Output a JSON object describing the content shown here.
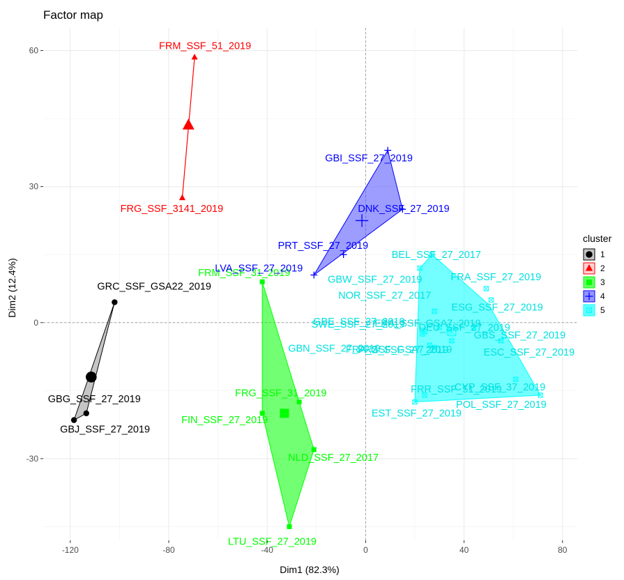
{
  "chart_data": {
    "type": "scatter",
    "title": "Factor map",
    "xlabel": "Dim1 (82.3%)",
    "ylabel": "Dim2 (12.4%)",
    "xlim": [
      -131,
      86
    ],
    "ylim": [
      -48,
      65
    ],
    "xticks": [
      -120,
      -80,
      -40,
      0,
      40,
      80
    ],
    "yticks": [
      -30,
      0,
      30,
      60
    ],
    "grid": true,
    "legend_title": "cluster",
    "legend_position": "right",
    "clusters": [
      {
        "name": "1",
        "color": "#000000",
        "fill": "#bfbfbf",
        "marker": "circle",
        "centroid": [
          -111.5,
          -12
        ],
        "hull": [
          [
            -102,
            4.5
          ],
          [
            -118.5,
            -21.5
          ],
          [
            -113.5,
            -20
          ]
        ],
        "points": [
          {
            "label": "GRC_SSF_GSA22_2019",
            "x": -102,
            "y": 4.5
          },
          {
            "label": "GBG_SSF_27_2019",
            "x": -113.5,
            "y": -20
          },
          {
            "label": "GBJ_SSF_27_2019",
            "x": -118.5,
            "y": -21.5
          }
        ]
      },
      {
        "name": "2",
        "color": "#ff0000",
        "fill": "#ffb3b3",
        "marker": "triangle",
        "centroid": [
          -72,
          43.5
        ],
        "hull": [
          [
            -69.5,
            58.5
          ],
          [
            -74.5,
            27.5
          ]
        ],
        "points": [
          {
            "label": "FRM_SSF_51_2019",
            "x": -69.5,
            "y": 58.5
          },
          {
            "label": "FRG_SSF_3141_2019",
            "x": -74.5,
            "y": 27.5
          }
        ]
      },
      {
        "name": "3",
        "color": "#00ff00",
        "fill": "#00ff00",
        "marker": "square",
        "centroid": [
          -33,
          -20
        ],
        "hull": [
          [
            -42,
            9
          ],
          [
            -27,
            -17.5
          ],
          [
            -21,
            -28
          ],
          [
            -31,
            -45
          ],
          [
            -42,
            -20
          ]
        ],
        "points": [
          {
            "label": "FRM_SSF_31_2019",
            "x": -42,
            "y": 9
          },
          {
            "label": "FRG_SSF_31_2019",
            "x": -27,
            "y": -17.5
          },
          {
            "label": "FIN_SSF_27_2019",
            "x": -42,
            "y": -20
          },
          {
            "label": "NLD_SSF_27_2017",
            "x": -21,
            "y": -28
          },
          {
            "label": "LTU_SSF_27_2019",
            "x": -31,
            "y": -45
          }
        ]
      },
      {
        "name": "4",
        "color": "#0000ff",
        "fill": "#4d4dff",
        "marker": "plus",
        "centroid": [
          -1.5,
          22.5
        ],
        "hull": [
          [
            9,
            38
          ],
          [
            15,
            25
          ],
          [
            -21,
            10.5
          ]
        ],
        "points": [
          {
            "label": "GBI_SSF_27_2019",
            "x": 9,
            "y": 38
          },
          {
            "label": "DNK_SSF_27_2019",
            "x": 15,
            "y": 25
          },
          {
            "label": "PRT_SSF_27_2019",
            "x": -9,
            "y": 15
          },
          {
            "label": "LVA_SSF_27_2019",
            "x": -21,
            "y": 10.5
          }
        ]
      },
      {
        "name": "5",
        "color": "#00ffff",
        "fill": "#00ffff",
        "marker": "square-x",
        "centroid": [
          35,
          -2
        ],
        "hull": [
          [
            27,
            15
          ],
          [
            50,
            4
          ],
          [
            71,
            -16
          ],
          [
            20,
            -17.5
          ],
          [
            22,
            12
          ]
        ],
        "points": [
          {
            "label": "BEL_SSF_27_2017",
            "x": 27,
            "y": 15
          },
          {
            "label": "GBW_SSF_27_2019",
            "x": 22,
            "y": 12
          },
          {
            "label": "FRA_SSF_27_2019",
            "x": 49,
            "y": 7.5
          },
          {
            "label": "NOR_SSF_27_2017",
            "x": 28,
            "y": 2.5
          },
          {
            "label": "ESG_SSF_27_2019",
            "x": 51,
            "y": 5
          },
          {
            "label": "GBE_SSF_27_2019",
            "x": 24,
            "y": -2
          },
          {
            "label": "FRA_SSF_GSA7_2019",
            "x": 30,
            "y": -1
          },
          {
            "label": "DEU_SSF_27_2019",
            "x": 34,
            "y": -1.5
          },
          {
            "label": "GBS_SSF_27_2019",
            "x": 44,
            "y": -1
          },
          {
            "label": "SWE_SSF_27_2019",
            "x": 23,
            "y": -2.5
          },
          {
            "label": "ESC_SSF_27_2019",
            "x": 55,
            "y": -4
          },
          {
            "label": "GBN_SSF_27_2019",
            "x": 26,
            "y": -5
          },
          {
            "label": "PRZ_SSF_27_2019",
            "x": 28,
            "y": -5.5
          },
          {
            "label": "FRA_SSF_GSA7_2019",
            "x": 35,
            "y": -4
          },
          {
            "label": "CYP_SSF_37_2019",
            "x": 61,
            "y": -12.5
          },
          {
            "label": "FRR_SSF_51_2019",
            "x": 24,
            "y": -16
          },
          {
            "label": "EST_SSF_27_2019",
            "x": 20,
            "y": -17.5
          },
          {
            "label": "POL_SSF_27_2019",
            "x": 71,
            "y": -16
          }
        ]
      }
    ]
  }
}
